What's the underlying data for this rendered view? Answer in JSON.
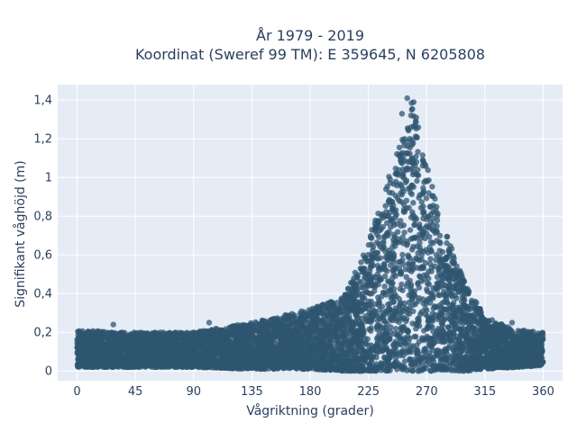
{
  "chart_data": {
    "type": "scatter",
    "title_line1": "År 1979 - 2019",
    "title_line2": "Koordinat (Sweref 99 TM): E 359645, N 6205808",
    "xlabel": "Vågriktning (grader)",
    "ylabel": "Signifikant våghöjd (m)",
    "xlim": [
      -15,
      375
    ],
    "ylim": [
      -0.05,
      1.48
    ],
    "xticks": [
      0,
      45,
      90,
      135,
      180,
      225,
      270,
      315,
      360
    ],
    "yticks": [
      0,
      0.2,
      0.4,
      0.6,
      0.8,
      1,
      1.2,
      1.4
    ],
    "ytick_labels": [
      "0",
      "0,2",
      "0,4",
      "0,6",
      "0,8",
      "1",
      "1,2",
      "1,4"
    ],
    "grid": true,
    "background": "#e5ecf6",
    "marker_color": "#2f5670",
    "x_domain": [
      0,
      360
    ],
    "envelope": [
      {
        "x": 0,
        "y_min": 0.02,
        "y_max": 0.21
      },
      {
        "x": 45,
        "y_min": 0.02,
        "y_max": 0.2
      },
      {
        "x": 90,
        "y_min": 0.02,
        "y_max": 0.2
      },
      {
        "x": 135,
        "y_min": 0.01,
        "y_max": 0.25
      },
      {
        "x": 180,
        "y_min": 0.01,
        "y_max": 0.32
      },
      {
        "x": 205,
        "y_min": 0.0,
        "y_max": 0.38
      },
      {
        "x": 220,
        "y_min": 0.0,
        "y_max": 0.58
      },
      {
        "x": 235,
        "y_min": 0.0,
        "y_max": 0.88
      },
      {
        "x": 250,
        "y_min": 0.0,
        "y_max": 1.2
      },
      {
        "x": 258,
        "y_min": 0.0,
        "y_max": 1.41
      },
      {
        "x": 265,
        "y_min": 0.0,
        "y_max": 1.22
      },
      {
        "x": 280,
        "y_min": 0.0,
        "y_max": 0.8
      },
      {
        "x": 300,
        "y_min": 0.0,
        "y_max": 0.45
      },
      {
        "x": 315,
        "y_min": 0.01,
        "y_max": 0.28
      },
      {
        "x": 340,
        "y_min": 0.02,
        "y_max": 0.21
      },
      {
        "x": 360,
        "y_min": 0.03,
        "y_max": 0.2
      }
    ],
    "outliers": [
      {
        "x": 255,
        "y": 1.41
      },
      {
        "x": 260,
        "y": 1.39
      },
      {
        "x": 251,
        "y": 1.33
      },
      {
        "x": 262,
        "y": 1.31
      },
      {
        "x": 258,
        "y": 1.26
      },
      {
        "x": 257,
        "y": 1.2
      },
      {
        "x": 102,
        "y": 0.25
      },
      {
        "x": 28,
        "y": 0.24
      },
      {
        "x": 336,
        "y": 0.25
      },
      {
        "x": 345,
        "y": 0.21
      }
    ]
  }
}
